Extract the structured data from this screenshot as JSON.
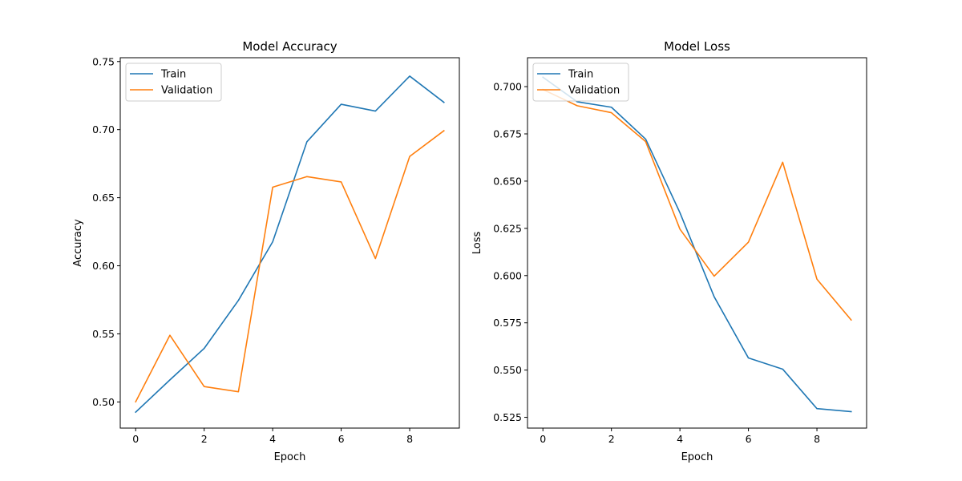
{
  "chart_data": [
    {
      "type": "line",
      "title": "Model Accuracy",
      "xlabel": "Epoch",
      "ylabel": "Accuracy",
      "xlim": [
        -0.45,
        9.45
      ],
      "ylim": [
        0.4808,
        0.7528
      ],
      "xticks": [
        0,
        2,
        4,
        6,
        8
      ],
      "xtick_labels": [
        "0",
        "2",
        "4",
        "6",
        "8"
      ],
      "yticks": [
        0.5,
        0.55,
        0.6,
        0.65,
        0.7,
        0.75
      ],
      "ytick_labels": [
        "0.50",
        "0.55",
        "0.60",
        "0.65",
        "0.70",
        "0.75"
      ],
      "legend_position": "upper-left",
      "grid": false,
      "x": [
        0,
        1,
        2,
        3,
        4,
        5,
        6,
        7,
        8,
        9
      ],
      "series": [
        {
          "name": "Train",
          "color": "#1f77b4",
          "values": [
            0.4925,
            0.5162,
            0.5393,
            0.5746,
            0.6176,
            0.6911,
            0.7186,
            0.7136,
            0.7393,
            0.72
          ]
        },
        {
          "name": "Validation",
          "color": "#ff7f0e",
          "values": [
            0.5001,
            0.549,
            0.5113,
            0.5075,
            0.6577,
            0.6655,
            0.6616,
            0.6053,
            0.6803,
            0.6992
          ]
        }
      ]
    },
    {
      "type": "line",
      "title": "Model Loss",
      "xlabel": "Epoch",
      "ylabel": "Loss",
      "xlim": [
        -0.45,
        9.45
      ],
      "ylim": [
        0.5193,
        0.7153
      ],
      "xticks": [
        0,
        2,
        4,
        6,
        8
      ],
      "xtick_labels": [
        "0",
        "2",
        "4",
        "6",
        "8"
      ],
      "yticks": [
        0.525,
        0.55,
        0.575,
        0.6,
        0.625,
        0.65,
        0.675,
        0.7
      ],
      "ytick_labels": [
        "0.525",
        "0.550",
        "0.575",
        "0.600",
        "0.625",
        "0.650",
        "0.675",
        "0.700"
      ],
      "legend_position": "upper-left",
      "grid": false,
      "x": [
        0,
        1,
        2,
        3,
        4,
        5,
        6,
        7,
        8,
        9
      ],
      "series": [
        {
          "name": "Train",
          "color": "#1f77b4",
          "values": [
            0.705,
            0.692,
            0.6891,
            0.6722,
            0.6333,
            0.5888,
            0.5564,
            0.5505,
            0.5296,
            0.528
          ]
        },
        {
          "name": "Validation",
          "color": "#ff7f0e",
          "values": [
            0.6985,
            0.6899,
            0.6862,
            0.6709,
            0.6246,
            0.5997,
            0.6177,
            0.66,
            0.5981,
            0.5765
          ]
        }
      ]
    }
  ]
}
